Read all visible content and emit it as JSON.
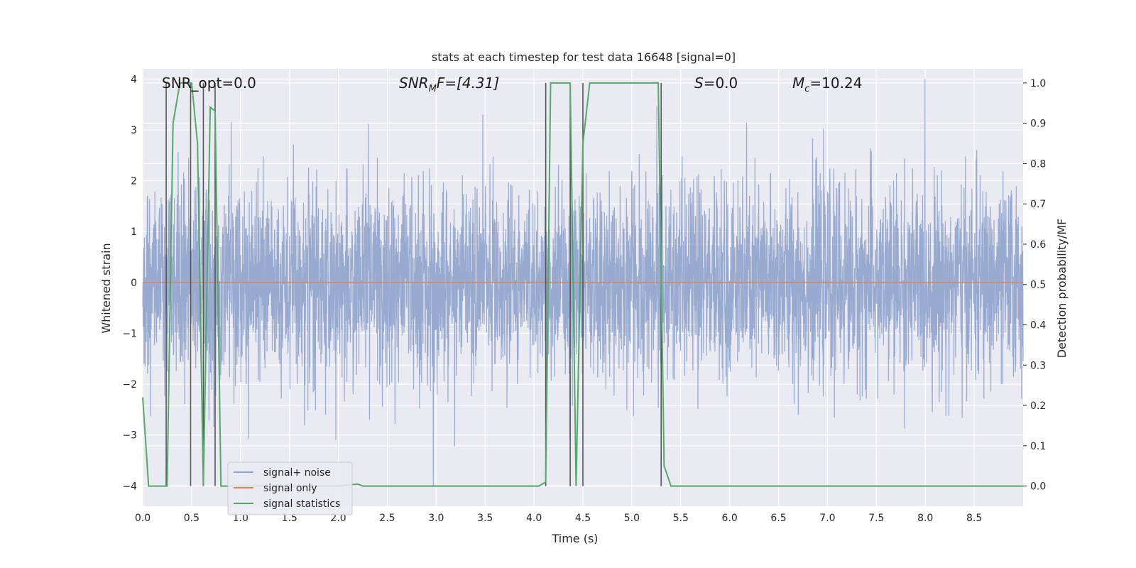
{
  "chart_data": {
    "type": "line",
    "title": "stats at each timestep for test data 16648 [signal=0]",
    "xlabel": "Time (s)",
    "ylabel_left": "Whitened strain",
    "ylabel_right": "Detection probability/MF",
    "xlim": [
      0,
      9.0
    ],
    "ylim_left": [
      -4.4,
      4.2
    ],
    "ylim_right": [
      -0.05,
      1.035
    ],
    "xticks": [
      "0.0",
      "0.5",
      "1.0",
      "1.5",
      "2.0",
      "2.5",
      "3.0",
      "3.5",
      "4.0",
      "4.5",
      "5.0",
      "5.5",
      "6.0",
      "6.5",
      "7.0",
      "7.5",
      "8.0",
      "8.5"
    ],
    "xtick_values": [
      0,
      0.5,
      1.0,
      1.5,
      2.0,
      2.5,
      3.0,
      3.5,
      4.0,
      4.5,
      5.0,
      5.5,
      6.0,
      6.5,
      7.0,
      7.5,
      8.0,
      8.5
    ],
    "yticks_left": [
      "−4",
      "−3",
      "−2",
      "−1",
      "0",
      "1",
      "2",
      "3",
      "4"
    ],
    "ytick_values_left": [
      -4,
      -3,
      -2,
      -1,
      0,
      1,
      2,
      3,
      4
    ],
    "yticks_right": [
      "0.0",
      "0.1",
      "0.2",
      "0.3",
      "0.4",
      "0.5",
      "0.6",
      "0.7",
      "0.8",
      "0.9",
      "1.0"
    ],
    "ytick_values_right": [
      0,
      0.1,
      0.2,
      0.3,
      0.4,
      0.5,
      0.6,
      0.7,
      0.8,
      0.9,
      1.0
    ],
    "grid": true,
    "legend_position": "lower-left",
    "annotations": {
      "snr_opt": "SNR_opt=0.0",
      "snr_mf_main": "SNR",
      "snr_mf_sub": "M",
      "snr_mf_rest": "F=[4.31]",
      "s_main": "S",
      "s_rest": "=0.0",
      "mc_main": "M",
      "mc_sub": "c",
      "mc_rest": "=10.24"
    },
    "series": [
      {
        "name": "signal+ noise",
        "axis": "left",
        "color": "#8fa3cc",
        "style": "noise",
        "x_range": [
          0,
          9.0
        ],
        "amplitude_rms": 1.0
      },
      {
        "name": "signal only",
        "axis": "left",
        "color": "#dd8452",
        "x": [
          0,
          9.0
        ],
        "y": [
          0,
          0
        ]
      },
      {
        "name": "signal statistics",
        "axis": "right",
        "color": "#55a868",
        "x": [
          0.0,
          0.06,
          0.25,
          0.31,
          0.38,
          0.5,
          0.56,
          0.62,
          0.69,
          0.74,
          0.8,
          2.0,
          2.2,
          2.25,
          3.5,
          4.05,
          4.12,
          4.17,
          4.37,
          4.43,
          4.5,
          4.57,
          5.27,
          5.33,
          5.4,
          9.0
        ],
        "y": [
          0.22,
          0.0,
          0.0,
          0.9,
          1.0,
          1.0,
          0.85,
          0.0,
          0.94,
          0.93,
          0.0,
          0.0,
          0.005,
          0.0,
          0.0,
          0.0,
          0.01,
          1.0,
          1.0,
          0.0,
          0.85,
          1.0,
          1.0,
          0.05,
          0.0,
          0.0
        ]
      }
    ],
    "vlines_x": [
      0.24,
      0.49,
      0.62,
      0.74,
      4.12,
      4.37,
      4.5,
      5.3
    ],
    "vlines_color": "#555555"
  }
}
